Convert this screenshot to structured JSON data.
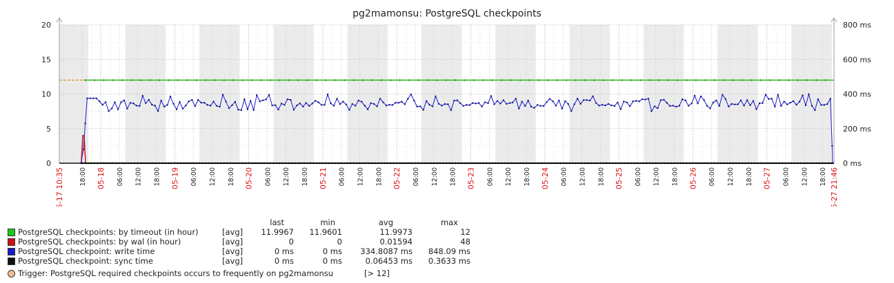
{
  "chart_data": {
    "type": "line",
    "title": "pg2mamonsu: PostgreSQL checkpoints",
    "y_left": {
      "ticks": [
        "20",
        "15",
        "10",
        "5",
        "0"
      ],
      "range": [
        0,
        20
      ]
    },
    "y_right": {
      "ticks": [
        "800 ms",
        "600 ms",
        "400 ms",
        "200 ms",
        "0 ms"
      ],
      "range": [
        0,
        800
      ]
    },
    "x_start_label": "05-17 10:35",
    "x_end_label": "05-27 21:46",
    "x_ticks": [
      {
        "label": "18:00",
        "red": false
      },
      {
        "label": "05-18",
        "red": true
      },
      {
        "label": "06:00",
        "red": false
      },
      {
        "label": "12:00",
        "red": false
      },
      {
        "label": "18:00",
        "red": false
      },
      {
        "label": "05-19",
        "red": true
      },
      {
        "label": "06:00",
        "red": false
      },
      {
        "label": "12:00",
        "red": false
      },
      {
        "label": "18:00",
        "red": false
      },
      {
        "label": "05-20",
        "red": true
      },
      {
        "label": "06:00",
        "red": false
      },
      {
        "label": "12:00",
        "red": false
      },
      {
        "label": "18:00",
        "red": false
      },
      {
        "label": "05-21",
        "red": true
      },
      {
        "label": "06:00",
        "red": false
      },
      {
        "label": "12:00",
        "red": false
      },
      {
        "label": "18:00",
        "red": false
      },
      {
        "label": "05-22",
        "red": true
      },
      {
        "label": "06:00",
        "red": false
      },
      {
        "label": "12:00",
        "red": false
      },
      {
        "label": "18:00",
        "red": false
      },
      {
        "label": "05-23",
        "red": true
      },
      {
        "label": "06:00",
        "red": false
      },
      {
        "label": "12:00",
        "red": false
      },
      {
        "label": "18:00",
        "red": false
      },
      {
        "label": "05-24",
        "red": true
      },
      {
        "label": "06:00",
        "red": false
      },
      {
        "label": "12:00",
        "red": false
      },
      {
        "label": "18:00",
        "red": false
      },
      {
        "label": "05-25",
        "red": true
      },
      {
        "label": "06:00",
        "red": false
      },
      {
        "label": "12:00",
        "red": false
      },
      {
        "label": "18:00",
        "red": false
      },
      {
        "label": "05-26",
        "red": true
      },
      {
        "label": "06:00",
        "red": false
      },
      {
        "label": "12:00",
        "red": false
      },
      {
        "label": "18:00",
        "red": false
      },
      {
        "label": "05-27",
        "red": true
      },
      {
        "label": "06:00",
        "red": false
      },
      {
        "label": "12:00",
        "red": false
      },
      {
        "label": "18:00",
        "red": false
      }
    ],
    "series": [
      {
        "name": "PostgreSQL checkpoints: by timeout (in hour)",
        "color": "#1ec81e",
        "axis": "left",
        "level": 12
      },
      {
        "name": "PostgreSQL checkpoints: by wal (in hour)",
        "color": "#cc1111",
        "axis": "left",
        "spike_peak": 4
      },
      {
        "name": "PostgreSQL checkpoint: write time",
        "color": "#1a1acc",
        "axis": "right",
        "typical_ms": 350,
        "variation_ms": 30
      },
      {
        "name": "PostgreSQL checkpoint: sync time",
        "color": "#111111",
        "axis": "right",
        "level": 0
      }
    ],
    "trigger_level": 12,
    "trigger_color": "#e0a040",
    "grid": true
  },
  "legend": {
    "headers": {
      "last": "last",
      "min": "min",
      "avg": "avg",
      "max": "max"
    },
    "rows": [
      {
        "label": "PostgreSQL checkpoints: by timeout (in hour)",
        "fn": "[avg]",
        "last": "11.9967",
        "min": "11.9601",
        "avg": "11.9973",
        "max": "12",
        "color": "#1ec81e"
      },
      {
        "label": "PostgreSQL checkpoints: by wal (in hour)",
        "fn": "[avg]",
        "last": "0",
        "min": "0",
        "avg": "0.01594",
        "max": "48",
        "color": "#cc1111"
      },
      {
        "label": "PostgreSQL checkpoint: write time",
        "fn": "[avg]",
        "last": "0 ms",
        "min": "0 ms",
        "avg": "334.8087 ms",
        "max": "848.09 ms",
        "color": "#1a1acc"
      },
      {
        "label": "PostgreSQL checkpoint: sync time",
        "fn": "[avg]",
        "last": "0 ms",
        "min": "0 ms",
        "avg": "0.06453 ms",
        "max": "0.3633 ms",
        "color": "#111111"
      }
    ],
    "trigger": {
      "text": "Trigger: PostgreSQL required checkpoints occurs to frequently on pg2mamonsu",
      "value": "[> 12]",
      "color": "#f0c090"
    }
  }
}
